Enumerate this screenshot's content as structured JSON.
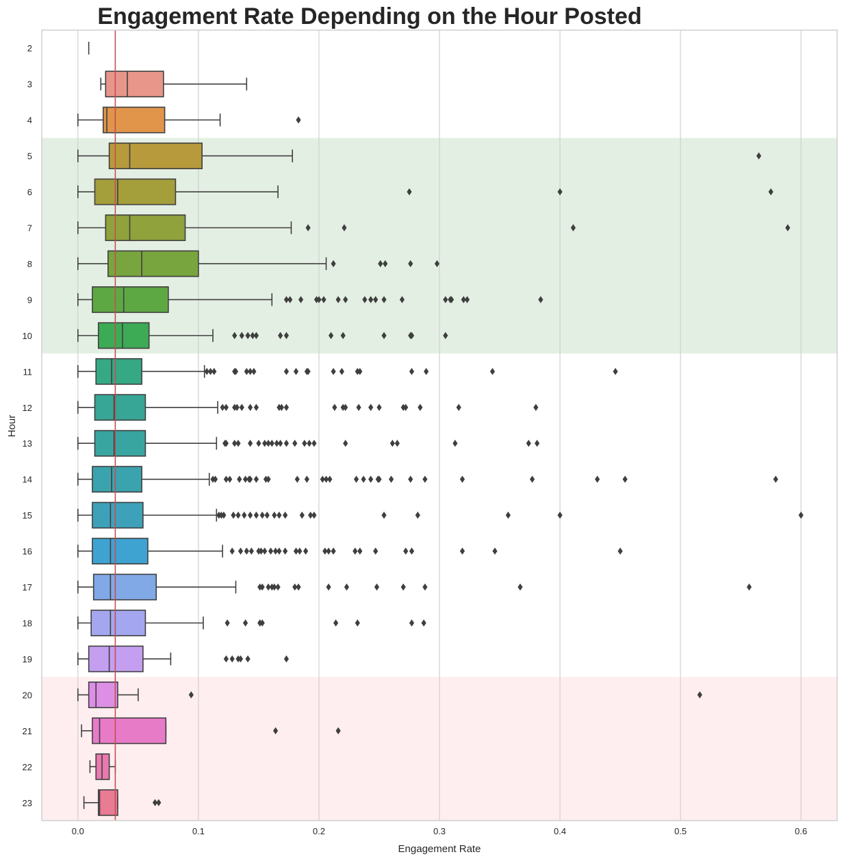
{
  "chart_data": {
    "type": "boxplot",
    "orientation": "horizontal",
    "title": "Engagement Rate Depending on the Hour Posted",
    "xlabel": "Engagement Rate",
    "ylabel": "Hour",
    "xlim": [
      -0.03,
      0.63
    ],
    "xticks": [
      "0.0",
      "0.1",
      "0.2",
      "0.3",
      "0.4",
      "0.5",
      "0.6"
    ],
    "xtick_values": [
      0.0,
      0.1,
      0.2,
      0.3,
      0.4,
      0.5,
      0.6
    ],
    "grid": "vertical",
    "reference_line": {
      "x": 0.031,
      "color": "#c44e52"
    },
    "highlight_bands": [
      {
        "from_hour": "5",
        "to_hour": "10",
        "color": "#8fbc8f"
      },
      {
        "from_hour": "20",
        "to_hour": "23",
        "color": "#ffb6c1"
      }
    ],
    "categories": [
      "2",
      "3",
      "4",
      "5",
      "6",
      "7",
      "8",
      "9",
      "10",
      "11",
      "12",
      "13",
      "14",
      "15",
      "16",
      "17",
      "18",
      "19",
      "20",
      "21",
      "22",
      "23"
    ],
    "boxes": [
      {
        "hour": "2",
        "min": 0.009,
        "q1": 0.009,
        "median": 0.009,
        "q3": 0.009,
        "max": 0.009,
        "color": "#ea96a3",
        "outliers": []
      },
      {
        "hour": "3",
        "min": 0.019,
        "q1": 0.023,
        "median": 0.041,
        "q3": 0.071,
        "max": 0.14,
        "color": "#e8968a",
        "outliers": []
      },
      {
        "hour": "4",
        "min": 0.0,
        "q1": 0.021,
        "median": 0.024,
        "q3": 0.072,
        "max": 0.118,
        "color": "#e0954b",
        "outliers": [
          0.183
        ]
      },
      {
        "hour": "5",
        "min": 0.0,
        "q1": 0.026,
        "median": 0.043,
        "q3": 0.103,
        "max": 0.178,
        "color": "#b79a3c",
        "outliers": [
          0.565
        ]
      },
      {
        "hour": "6",
        "min": 0.0,
        "q1": 0.014,
        "median": 0.033,
        "q3": 0.081,
        "max": 0.166,
        "color": "#a49e3b",
        "outliers": [
          0.275,
          0.4,
          0.575
        ]
      },
      {
        "hour": "7",
        "min": 0.0,
        "q1": 0.023,
        "median": 0.043,
        "q3": 0.089,
        "max": 0.177,
        "color": "#8fa23c",
        "outliers": [
          0.191,
          0.221,
          0.411,
          0.589
        ]
      },
      {
        "hour": "8",
        "min": 0.0,
        "q1": 0.025,
        "median": 0.053,
        "q3": 0.1,
        "max": 0.206,
        "color": "#79a53e",
        "outliers": [
          0.212,
          0.251,
          0.255,
          0.276,
          0.298
        ]
      },
      {
        "hour": "9",
        "min": 0.0,
        "q1": 0.012,
        "median": 0.038,
        "q3": 0.075,
        "max": 0.161,
        "color": "#5ea843",
        "outliers": [
          0.173,
          0.176,
          0.185,
          0.198,
          0.2,
          0.204,
          0.216,
          0.222,
          0.238,
          0.243,
          0.247,
          0.254,
          0.269,
          0.305,
          0.309,
          0.31,
          0.32,
          0.323,
          0.384
        ]
      },
      {
        "hour": "10",
        "min": 0.0,
        "q1": 0.017,
        "median": 0.037,
        "q3": 0.059,
        "max": 0.112,
        "color": "#3daa55",
        "outliers": [
          0.13,
          0.136,
          0.141,
          0.145,
          0.148,
          0.168,
          0.173,
          0.21,
          0.22,
          0.254,
          0.276,
          0.277,
          0.305
        ]
      },
      {
        "hour": "11",
        "min": 0.0,
        "q1": 0.015,
        "median": 0.028,
        "q3": 0.053,
        "max": 0.105,
        "color": "#36a884",
        "outliers": [
          0.107,
          0.11,
          0.113,
          0.13,
          0.131,
          0.14,
          0.143,
          0.146,
          0.173,
          0.181,
          0.19,
          0.191,
          0.212,
          0.219,
          0.232,
          0.234,
          0.277,
          0.289,
          0.344,
          0.446
        ]
      },
      {
        "hour": "12",
        "min": 0.0,
        "q1": 0.014,
        "median": 0.03,
        "q3": 0.056,
        "max": 0.116,
        "color": "#37a696",
        "outliers": [
          0.12,
          0.123,
          0.13,
          0.132,
          0.136,
          0.143,
          0.148,
          0.167,
          0.169,
          0.173,
          0.213,
          0.22,
          0.222,
          0.233,
          0.243,
          0.25,
          0.27,
          0.272,
          0.284,
          0.316,
          0.38
        ]
      },
      {
        "hour": "13",
        "min": 0.0,
        "q1": 0.014,
        "median": 0.03,
        "q3": 0.056,
        "max": 0.115,
        "color": "#39a5a1",
        "outliers": [
          0.122,
          0.123,
          0.13,
          0.133,
          0.143,
          0.15,
          0.155,
          0.158,
          0.161,
          0.165,
          0.168,
          0.173,
          0.18,
          0.188,
          0.192,
          0.196,
          0.222,
          0.261,
          0.265,
          0.313,
          0.374,
          0.381
        ]
      },
      {
        "hour": "14",
        "min": 0.0,
        "q1": 0.012,
        "median": 0.028,
        "q3": 0.053,
        "max": 0.109,
        "color": "#3ba3ad",
        "outliers": [
          0.112,
          0.114,
          0.123,
          0.126,
          0.134,
          0.139,
          0.142,
          0.143,
          0.148,
          0.156,
          0.158,
          0.182,
          0.19,
          0.203,
          0.206,
          0.209,
          0.231,
          0.237,
          0.243,
          0.249,
          0.25,
          0.26,
          0.276,
          0.288,
          0.319,
          0.377,
          0.431,
          0.454,
          0.579
        ]
      },
      {
        "hour": "15",
        "min": 0.0,
        "q1": 0.012,
        "median": 0.027,
        "q3": 0.054,
        "max": 0.115,
        "color": "#3ea1ba",
        "outliers": [
          0.117,
          0.119,
          0.121,
          0.129,
          0.133,
          0.138,
          0.143,
          0.148,
          0.153,
          0.157,
          0.163,
          0.167,
          0.172,
          0.186,
          0.193,
          0.196,
          0.254,
          0.282,
          0.357,
          0.4,
          0.6
        ]
      },
      {
        "hour": "16",
        "min": 0.0,
        "q1": 0.012,
        "median": 0.027,
        "q3": 0.058,
        "max": 0.12,
        "color": "#3fa3d2",
        "outliers": [
          0.128,
          0.135,
          0.14,
          0.144,
          0.15,
          0.152,
          0.155,
          0.16,
          0.164,
          0.167,
          0.172,
          0.181,
          0.184,
          0.189,
          0.205,
          0.208,
          0.212,
          0.23,
          0.234,
          0.247,
          0.272,
          0.277,
          0.319,
          0.346,
          0.45
        ]
      },
      {
        "hour": "17",
        "min": 0.0,
        "q1": 0.013,
        "median": 0.027,
        "q3": 0.065,
        "max": 0.131,
        "color": "#80a9e6",
        "outliers": [
          0.151,
          0.153,
          0.158,
          0.161,
          0.163,
          0.166,
          0.18,
          0.183,
          0.208,
          0.223,
          0.248,
          0.27,
          0.288,
          0.367,
          0.557
        ]
      },
      {
        "hour": "18",
        "min": 0.0,
        "q1": 0.011,
        "median": 0.027,
        "q3": 0.056,
        "max": 0.104,
        "color": "#a4a7ef",
        "outliers": [
          0.124,
          0.139,
          0.151,
          0.153,
          0.214,
          0.232,
          0.277,
          0.287
        ]
      },
      {
        "hour": "19",
        "min": 0.0,
        "q1": 0.009,
        "median": 0.026,
        "q3": 0.054,
        "max": 0.077,
        "color": "#c49ff0",
        "outliers": [
          0.123,
          0.128,
          0.133,
          0.135,
          0.141,
          0.173
        ]
      },
      {
        "hour": "20",
        "min": 0.0,
        "q1": 0.009,
        "median": 0.015,
        "q3": 0.033,
        "max": 0.05,
        "color": "#dc8fe5",
        "outliers": [
          0.094,
          0.516
        ]
      },
      {
        "hour": "21",
        "min": 0.003,
        "q1": 0.012,
        "median": 0.018,
        "q3": 0.073,
        "max": 0.073,
        "color": "#e77bc7",
        "outliers": [
          0.164,
          0.216
        ]
      },
      {
        "hour": "22",
        "min": 0.01,
        "q1": 0.015,
        "median": 0.02,
        "q3": 0.026,
        "max": 0.031,
        "color": "#e87aae",
        "outliers": []
      },
      {
        "hour": "23",
        "min": 0.005,
        "q1": 0.017,
        "median": 0.018,
        "q3": 0.033,
        "max": 0.033,
        "color": "#e97b95",
        "outliers": [
          0.064,
          0.067
        ]
      }
    ]
  }
}
